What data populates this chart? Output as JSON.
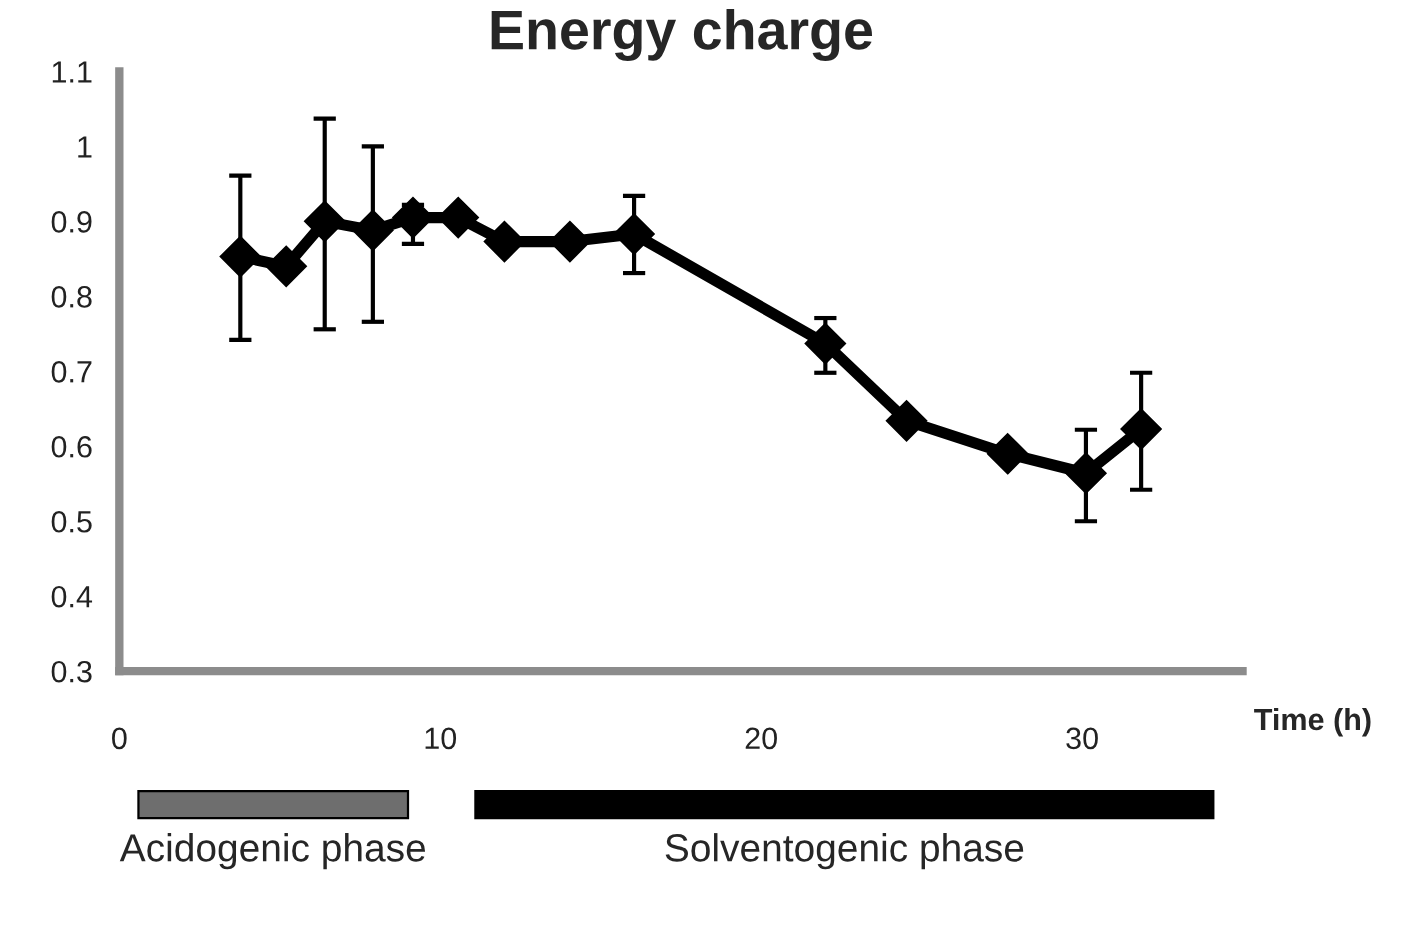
{
  "chart_data": {
    "type": "line",
    "title": "Energy charge",
    "xlabel": "Time (h)",
    "x": [
      3.77,
      5.2,
      6.4,
      7.9,
      9.15,
      10.56,
      12.0,
      14.04,
      16.04,
      22.0,
      24.53,
      27.68,
      30.12,
      31.84
    ],
    "series": [
      {
        "color": "#000000",
        "values": [
          0.853,
          0.84,
          0.9,
          0.888,
          0.905,
          0.905,
          0.873,
          0.873,
          0.883,
          0.737,
          0.634,
          0.59,
          0.564,
          0.623
        ],
        "errors": [
          [
            0.742,
            0.961
          ],
          null,
          [
            0.756,
            1.037
          ],
          [
            0.766,
            1.0
          ],
          [
            0.87,
            0.922
          ],
          null,
          null,
          null,
          [
            0.831,
            0.934
          ],
          [
            0.698,
            0.771
          ],
          null,
          null,
          [
            0.5,
            0.622
          ],
          [
            0.542,
            0.698
          ]
        ]
      }
    ],
    "xlim": [
      0,
      35
    ],
    "xticks": [
      0,
      10,
      20,
      30
    ],
    "ylim": [
      0.3,
      1.1
    ],
    "yticks": [
      0.3,
      0.4,
      0.5,
      0.6,
      0.7,
      0.8,
      0.9,
      1,
      1.1
    ],
    "annotations": [
      "Acidogenic phase",
      "Solventogenic phase"
    ],
    "grid": false,
    "legend": false,
    "marker": "diamond",
    "line_style": "solid"
  }
}
